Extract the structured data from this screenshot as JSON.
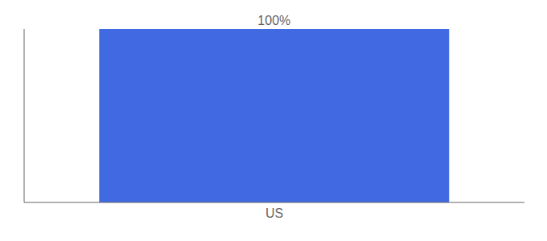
{
  "chart_data": {
    "type": "bar",
    "categories": [
      "US"
    ],
    "values": [
      100
    ],
    "value_labels": [
      "100%"
    ],
    "data_labels": true,
    "color": "#4169e1",
    "ylim": [
      0,
      100
    ],
    "tick_labels": "x",
    "grid": false
  }
}
